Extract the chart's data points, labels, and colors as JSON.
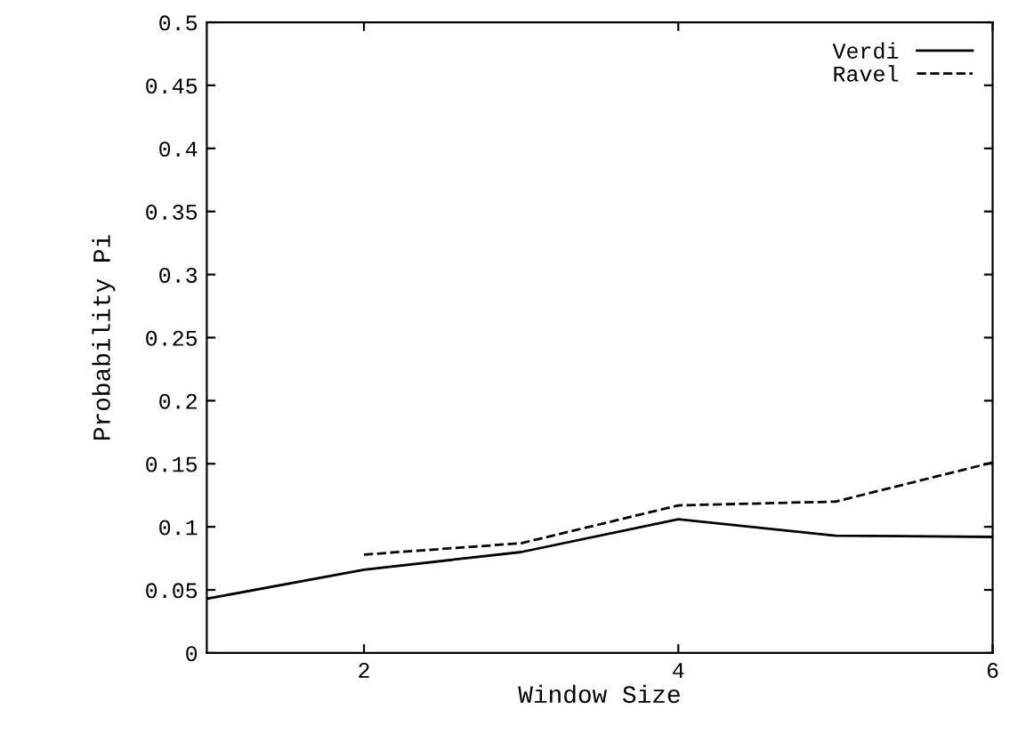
{
  "chart_data": {
    "type": "line",
    "xlabel": "Window Size",
    "ylabel": "Probability Pi",
    "x": [
      1,
      2,
      3,
      4,
      5,
      6
    ],
    "series": [
      {
        "name": "Verdi",
        "color": "#000000",
        "line_style": "solid",
        "values": [
          0.043,
          0.066,
          0.08,
          0.106,
          0.093,
          0.092
        ]
      },
      {
        "name": "Ravel",
        "color": "#000000",
        "line_style": "dashed",
        "values": [
          null,
          0.078,
          0.087,
          0.117,
          0.12,
          0.151
        ]
      }
    ],
    "xlim": [
      1,
      6
    ],
    "xticks": [
      2,
      4,
      6
    ],
    "ylim": [
      0,
      0.5
    ],
    "yticks": [
      0,
      0.05,
      0.1,
      0.15,
      0.2,
      0.25,
      0.3,
      0.35,
      0.4,
      0.45,
      0.5
    ],
    "grid": false,
    "legend": "top right",
    "marker": "none"
  }
}
